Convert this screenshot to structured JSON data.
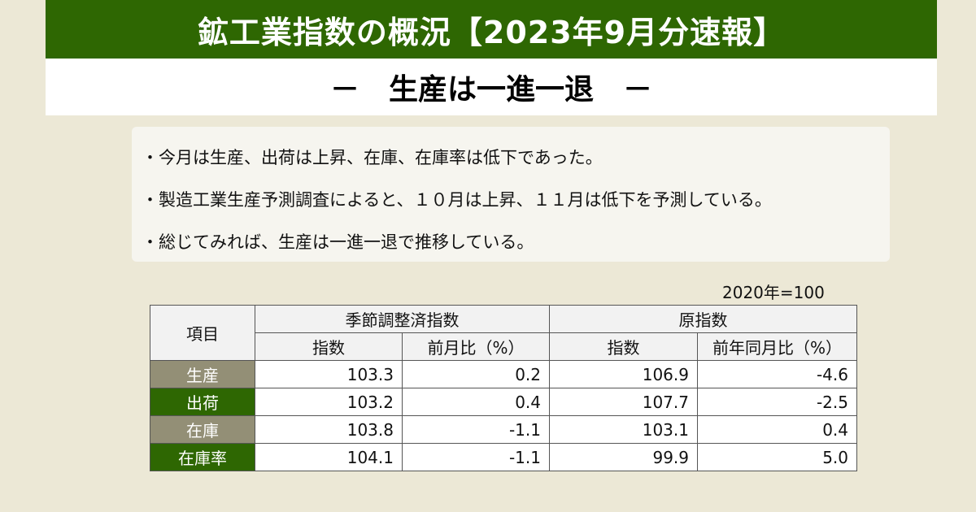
{
  "header": {
    "title": "鉱工業指数の概況【2023年9月分速報】",
    "subtitle": "－　生産は一進一退　－"
  },
  "summary": [
    "・今月は生産、出荷は上昇、在庫、在庫率は低下であった。",
    "・製造工業生産予測調査によると、１０月は上昇、１１月は低下を予測している。",
    "・総じてみれば、生産は一進一退で推移している。"
  ],
  "base_note": "2020年=100",
  "table": {
    "item_header": "項目",
    "group_headers": [
      "季節調整済指数",
      "原指数"
    ],
    "sub_headers": [
      "指数",
      "前月比（%）",
      "指数",
      "前年同月比（%）"
    ],
    "rows": [
      {
        "label": "生産",
        "sa_index": "103.3",
        "sa_mom": "0.2",
        "raw_index": "106.9",
        "raw_yoy": "-4.6"
      },
      {
        "label": "出荷",
        "sa_index": "103.2",
        "sa_mom": "0.4",
        "raw_index": "107.7",
        "raw_yoy": "-2.5"
      },
      {
        "label": "在庫",
        "sa_index": "103.8",
        "sa_mom": "-1.1",
        "raw_index": "103.1",
        "raw_yoy": "0.4"
      },
      {
        "label": "在庫率",
        "sa_index": "104.1",
        "sa_mom": "-1.1",
        "raw_index": "99.9",
        "raw_yoy": "5.0"
      }
    ]
  },
  "colors": {
    "brand_green": "#2e6702",
    "label_tan": "#938f76",
    "background": "#ece8d6"
  }
}
